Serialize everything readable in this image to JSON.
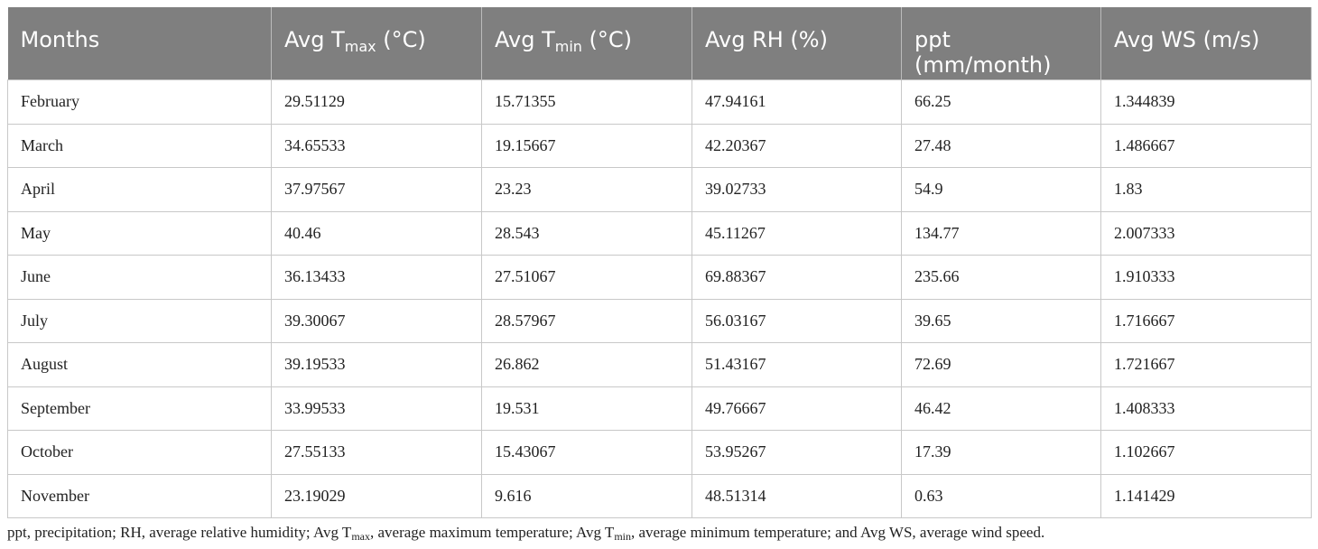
{
  "table": {
    "columns": [
      {
        "text": "Months"
      },
      {
        "text": "Avg T",
        "sub": "max",
        "tail": " (°C)"
      },
      {
        "text": "Avg T",
        "sub": "min",
        "tail": " (°C)"
      },
      {
        "text": "Avg RH (%)"
      },
      {
        "text": "ppt (mm/month)"
      },
      {
        "text": "Avg WS (m/s)"
      }
    ],
    "rows": [
      [
        "February",
        "29.51129",
        "15.71355",
        "47.94161",
        "66.25",
        "1.344839"
      ],
      [
        "March",
        "34.65533",
        "19.15667",
        "42.20367",
        "27.48",
        "1.486667"
      ],
      [
        "April",
        "37.97567",
        "23.23",
        "39.02733",
        "54.9",
        "1.83"
      ],
      [
        "May",
        "40.46",
        "28.543",
        "45.11267",
        "134.77",
        "2.007333"
      ],
      [
        "June",
        "36.13433",
        "27.51067",
        "69.88367",
        "235.66",
        "1.910333"
      ],
      [
        "July",
        "39.30067",
        "28.57967",
        "56.03167",
        "39.65",
        "1.716667"
      ],
      [
        "August",
        "39.19533",
        "26.862",
        "51.43167",
        "72.69",
        "1.721667"
      ],
      [
        "September",
        "33.99533",
        "19.531",
        "49.76667",
        "46.42",
        "1.408333"
      ],
      [
        "October",
        "27.55133",
        "15.43067",
        "53.95267",
        "17.39",
        "1.102667"
      ],
      [
        "November",
        "23.19029",
        "9.616",
        "48.51314",
        "0.63",
        "1.141429"
      ]
    ]
  },
  "footnote": {
    "parts": [
      {
        "text": "ppt, precipitation; RH, average relative humidity; Avg T"
      },
      {
        "sub": "max"
      },
      {
        "text": ", average maximum temperature; Avg T"
      },
      {
        "sub": "min"
      },
      {
        "text": ", average minimum temperature; and Avg WS, average wind speed."
      }
    ]
  }
}
